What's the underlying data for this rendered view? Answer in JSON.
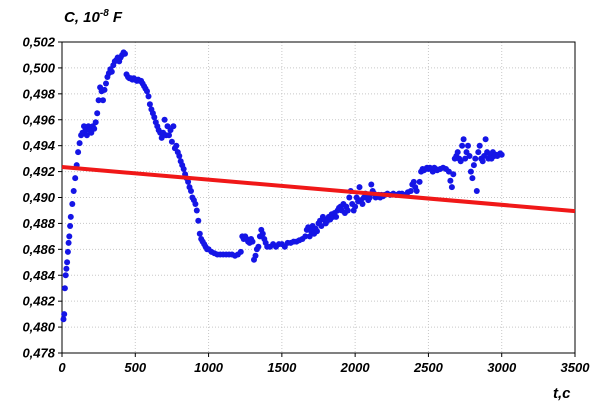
{
  "chart_data": {
    "type": "scatter",
    "ylabel": "C, 10",
    "ylabel_exponent": "-8",
    "ylabel_unit": " F",
    "xlabel": "t,c",
    "xlim": [
      0,
      3500
    ],
    "ylim": [
      0.478,
      0.502
    ],
    "x_ticks": [
      0,
      500,
      1000,
      1500,
      2000,
      2500,
      3000,
      3500
    ],
    "y_ticks": [
      "0,478",
      "0,480",
      "0,482",
      "0,484",
      "0,486",
      "0,488",
      "0,490",
      "0,492",
      "0,494",
      "0,496",
      "0,498",
      "0,500",
      "0,502"
    ],
    "grid": true,
    "colors": {
      "points": "#1515e6",
      "trend": "#f01818",
      "grid": "#c8c8c8"
    },
    "series": [
      {
        "kind": "scatter",
        "points": [
          [
            10,
            0.4806
          ],
          [
            15,
            0.481
          ],
          [
            20,
            0.483
          ],
          [
            25,
            0.484
          ],
          [
            30,
            0.4845
          ],
          [
            35,
            0.485
          ],
          [
            40,
            0.4858
          ],
          [
            45,
            0.4865
          ],
          [
            50,
            0.487
          ],
          [
            55,
            0.4878
          ],
          [
            60,
            0.4885
          ],
          [
            70,
            0.4895
          ],
          [
            80,
            0.4905
          ],
          [
            90,
            0.4915
          ],
          [
            100,
            0.4925
          ],
          [
            110,
            0.4935
          ],
          [
            120,
            0.4942
          ],
          [
            130,
            0.4948
          ],
          [
            140,
            0.495
          ],
          [
            150,
            0.4955
          ],
          [
            160,
            0.4952
          ],
          [
            170,
            0.4948
          ],
          [
            180,
            0.4955
          ],
          [
            190,
            0.4952
          ],
          [
            200,
            0.495
          ],
          [
            210,
            0.4955
          ],
          [
            220,
            0.4953
          ],
          [
            230,
            0.4958
          ],
          [
            240,
            0.4965
          ],
          [
            250,
            0.4975
          ],
          [
            260,
            0.4985
          ],
          [
            270,
            0.4982
          ],
          [
            280,
            0.4975
          ],
          [
            290,
            0.4983
          ],
          [
            300,
            0.4988
          ],
          [
            310,
            0.4993
          ],
          [
            320,
            0.4996
          ],
          [
            330,
            0.4999
          ],
          [
            340,
            0.4997
          ],
          [
            350,
            0.5002
          ],
          [
            360,
            0.5005
          ],
          [
            370,
            0.5006
          ],
          [
            380,
            0.5008
          ],
          [
            390,
            0.5005
          ],
          [
            400,
            0.5008
          ],
          [
            410,
            0.501
          ],
          [
            420,
            0.5012
          ],
          [
            430,
            0.5011
          ],
          [
            440,
            0.4995
          ],
          [
            450,
            0.4993
          ],
          [
            460,
            0.4992
          ],
          [
            470,
            0.4992
          ],
          [
            480,
            0.4991
          ],
          [
            490,
            0.4992
          ],
          [
            500,
            0.4991
          ],
          [
            510,
            0.499
          ],
          [
            520,
            0.4991
          ],
          [
            530,
            0.499
          ],
          [
            540,
            0.499
          ],
          [
            550,
            0.4988
          ],
          [
            560,
            0.4986
          ],
          [
            570,
            0.4984
          ],
          [
            580,
            0.4982
          ],
          [
            590,
            0.4978
          ],
          [
            600,
            0.4972
          ],
          [
            610,
            0.4968
          ],
          [
            620,
            0.4965
          ],
          [
            630,
            0.4962
          ],
          [
            640,
            0.4958
          ],
          [
            650,
            0.4955
          ],
          [
            660,
            0.4952
          ],
          [
            670,
            0.495
          ],
          [
            680,
            0.4946
          ],
          [
            690,
            0.495
          ],
          [
            700,
            0.496
          ],
          [
            710,
            0.4948
          ],
          [
            720,
            0.4955
          ],
          [
            730,
            0.4948
          ],
          [
            740,
            0.4952
          ],
          [
            750,
            0.4943
          ],
          [
            760,
            0.4955
          ],
          [
            770,
            0.4938
          ],
          [
            780,
            0.494
          ],
          [
            790,
            0.4935
          ],
          [
            800,
            0.4932
          ],
          [
            810,
            0.4928
          ],
          [
            820,
            0.4925
          ],
          [
            830,
            0.4922
          ],
          [
            840,
            0.4918
          ],
          [
            850,
            0.4915
          ],
          [
            860,
            0.4912
          ],
          [
            870,
            0.4908
          ],
          [
            880,
            0.4905
          ],
          [
            890,
            0.49
          ],
          [
            900,
            0.4898
          ],
          [
            910,
            0.4895
          ],
          [
            920,
            0.489
          ],
          [
            930,
            0.4882
          ],
          [
            940,
            0.4872
          ],
          [
            950,
            0.4868
          ],
          [
            960,
            0.4866
          ],
          [
            970,
            0.4864
          ],
          [
            980,
            0.4862
          ],
          [
            990,
            0.486
          ],
          [
            1000,
            0.486
          ],
          [
            1020,
            0.4858
          ],
          [
            1040,
            0.4857
          ],
          [
            1060,
            0.4856
          ],
          [
            1080,
            0.4856
          ],
          [
            1100,
            0.4856
          ],
          [
            1120,
            0.4856
          ],
          [
            1140,
            0.4856
          ],
          [
            1160,
            0.4856
          ],
          [
            1180,
            0.4855
          ],
          [
            1200,
            0.4856
          ],
          [
            1220,
            0.4858
          ],
          [
            1230,
            0.487
          ],
          [
            1240,
            0.4868
          ],
          [
            1250,
            0.487
          ],
          [
            1260,
            0.4868
          ],
          [
            1270,
            0.4866
          ],
          [
            1280,
            0.4865
          ],
          [
            1290,
            0.4868
          ],
          [
            1300,
            0.4866
          ],
          [
            1310,
            0.4852
          ],
          [
            1320,
            0.4855
          ],
          [
            1330,
            0.486
          ],
          [
            1340,
            0.4862
          ],
          [
            1350,
            0.487
          ],
          [
            1360,
            0.4875
          ],
          [
            1370,
            0.4872
          ],
          [
            1380,
            0.4868
          ],
          [
            1390,
            0.4865
          ],
          [
            1400,
            0.4862
          ],
          [
            1420,
            0.4862
          ],
          [
            1440,
            0.4864
          ],
          [
            1460,
            0.4862
          ],
          [
            1480,
            0.4864
          ],
          [
            1500,
            0.4864
          ],
          [
            1520,
            0.4862
          ],
          [
            1540,
            0.4865
          ],
          [
            1560,
            0.4865
          ],
          [
            1580,
            0.4866
          ],
          [
            1600,
            0.4866
          ],
          [
            1620,
            0.4867
          ],
          [
            1640,
            0.4868
          ],
          [
            1660,
            0.487
          ],
          [
            1670,
            0.4875
          ],
          [
            1680,
            0.4877
          ],
          [
            1690,
            0.487
          ],
          [
            1700,
            0.4874
          ],
          [
            1710,
            0.4878
          ],
          [
            1720,
            0.4872
          ],
          [
            1730,
            0.4876
          ],
          [
            1740,
            0.4874
          ],
          [
            1750,
            0.488
          ],
          [
            1760,
            0.4882
          ],
          [
            1770,
            0.4878
          ],
          [
            1780,
            0.4885
          ],
          [
            1790,
            0.4883
          ],
          [
            1800,
            0.488
          ],
          [
            1810,
            0.4882
          ],
          [
            1820,
            0.4885
          ],
          [
            1830,
            0.4883
          ],
          [
            1840,
            0.4887
          ],
          [
            1850,
            0.4885
          ],
          [
            1860,
            0.4888
          ],
          [
            1870,
            0.4885
          ],
          [
            1880,
            0.489
          ],
          [
            1890,
            0.4892
          ],
          [
            1900,
            0.4893
          ],
          [
            1910,
            0.489
          ],
          [
            1920,
            0.4895
          ],
          [
            1930,
            0.4888
          ],
          [
            1940,
            0.4893
          ],
          [
            1950,
            0.489
          ],
          [
            1960,
            0.49
          ],
          [
            1970,
            0.4905
          ],
          [
            1980,
            0.4895
          ],
          [
            1990,
            0.489
          ],
          [
            2000,
            0.4893
          ],
          [
            2010,
            0.49
          ],
          [
            2020,
            0.4897
          ],
          [
            2030,
            0.4908
          ],
          [
            2040,
            0.4898
          ],
          [
            2050,
            0.4895
          ],
          [
            2060,
            0.49
          ],
          [
            2070,
            0.4903
          ],
          [
            2080,
            0.49
          ],
          [
            2090,
            0.4898
          ],
          [
            2100,
            0.49
          ],
          [
            2110,
            0.491
          ],
          [
            2120,
            0.4905
          ],
          [
            2130,
            0.4903
          ],
          [
            2140,
            0.49
          ],
          [
            2150,
            0.4901
          ],
          [
            2160,
            0.4902
          ],
          [
            2170,
            0.49
          ],
          [
            2180,
            0.4902
          ],
          [
            2190,
            0.4901
          ],
          [
            2200,
            0.4902
          ],
          [
            2220,
            0.4903
          ],
          [
            2240,
            0.4902
          ],
          [
            2260,
            0.4903
          ],
          [
            2280,
            0.4902
          ],
          [
            2300,
            0.4903
          ],
          [
            2320,
            0.4903
          ],
          [
            2340,
            0.4902
          ],
          [
            2360,
            0.4904
          ],
          [
            2380,
            0.4905
          ],
          [
            2390,
            0.491
          ],
          [
            2400,
            0.4912
          ],
          [
            2410,
            0.4908
          ],
          [
            2420,
            0.4905
          ],
          [
            2440,
            0.4912
          ],
          [
            2450,
            0.492
          ],
          [
            2460,
            0.4922
          ],
          [
            2470,
            0.4921
          ],
          [
            2480,
            0.4922
          ],
          [
            2490,
            0.4923
          ],
          [
            2500,
            0.4922
          ],
          [
            2510,
            0.4923
          ],
          [
            2520,
            0.4922
          ],
          [
            2530,
            0.492
          ],
          [
            2540,
            0.4923
          ],
          [
            2550,
            0.4922
          ],
          [
            2560,
            0.4921
          ],
          [
            2580,
            0.4922
          ],
          [
            2600,
            0.4923
          ],
          [
            2620,
            0.4922
          ],
          [
            2640,
            0.492
          ],
          [
            2650,
            0.4913
          ],
          [
            2660,
            0.4908
          ],
          [
            2670,
            0.4918
          ],
          [
            2680,
            0.493
          ],
          [
            2690,
            0.4932
          ],
          [
            2700,
            0.4935
          ],
          [
            2710,
            0.493
          ],
          [
            2720,
            0.4928
          ],
          [
            2730,
            0.494
          ],
          [
            2740,
            0.4945
          ],
          [
            2750,
            0.493
          ],
          [
            2760,
            0.4935
          ],
          [
            2770,
            0.494
          ],
          [
            2780,
            0.4932
          ],
          [
            2790,
            0.492
          ],
          [
            2800,
            0.4915
          ],
          [
            2810,
            0.4925
          ],
          [
            2820,
            0.493
          ],
          [
            2830,
            0.4905
          ],
          [
            2840,
            0.4935
          ],
          [
            2850,
            0.494
          ],
          [
            2860,
            0.493
          ],
          [
            2870,
            0.4928
          ],
          [
            2880,
            0.4932
          ],
          [
            2890,
            0.4945
          ],
          [
            2900,
            0.4935
          ],
          [
            2910,
            0.493
          ],
          [
            2920,
            0.4932
          ],
          [
            2930,
            0.493
          ],
          [
            2940,
            0.4935
          ],
          [
            2950,
            0.4932
          ],
          [
            2960,
            0.4933
          ],
          [
            2970,
            0.4932
          ],
          [
            2980,
            0.4933
          ],
          [
            2990,
            0.4934
          ],
          [
            3000,
            0.4933
          ]
        ]
      },
      {
        "kind": "line",
        "points": [
          [
            0,
            0.49235
          ],
          [
            3500,
            0.48895
          ]
        ]
      }
    ]
  }
}
